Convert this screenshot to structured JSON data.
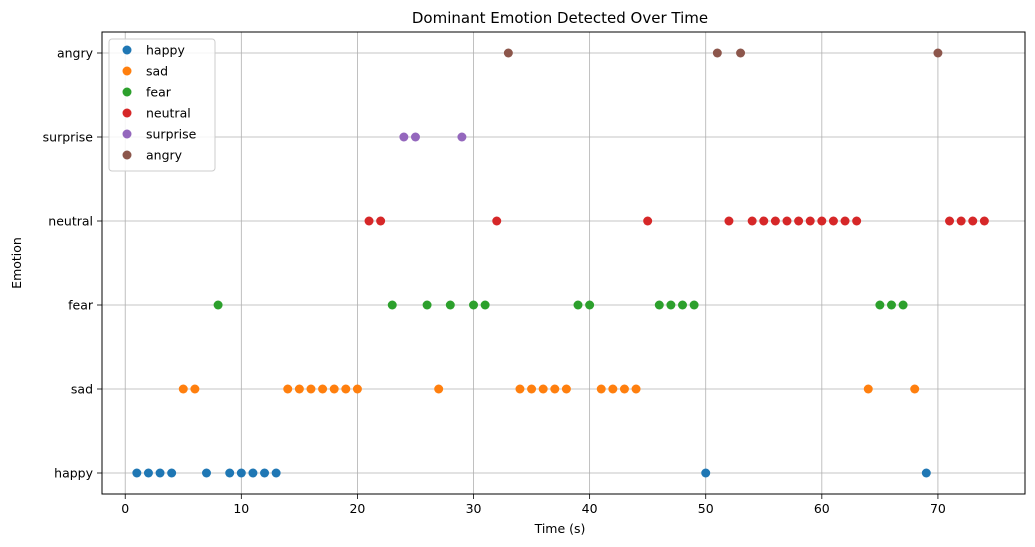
{
  "chart_data": {
    "type": "scatter",
    "title": "Dominant Emotion Detected Over Time",
    "xlabel": "Time (s)",
    "ylabel": "Emotion",
    "xlim": [
      -2,
      77.5
    ],
    "xticks": [
      0,
      10,
      20,
      30,
      40,
      50,
      60,
      70
    ],
    "categories": [
      "happy",
      "sad",
      "fear",
      "neutral",
      "surprise",
      "angry"
    ],
    "grid": true,
    "legend_position": "top-left",
    "series": [
      {
        "name": "happy",
        "color": "#1f77b4",
        "x": [
          1,
          2,
          3,
          4,
          7,
          9,
          10,
          11,
          12,
          13,
          50,
          69
        ]
      },
      {
        "name": "sad",
        "color": "#ff7f0e",
        "x": [
          5,
          6,
          14,
          15,
          16,
          17,
          18,
          19,
          20,
          27,
          34,
          35,
          36,
          37,
          38,
          41,
          42,
          43,
          44,
          64,
          68
        ]
      },
      {
        "name": "fear",
        "color": "#2ca02c",
        "x": [
          8,
          23,
          26,
          28,
          30,
          31,
          39,
          40,
          46,
          47,
          48,
          49,
          65,
          66,
          67
        ]
      },
      {
        "name": "neutral",
        "color": "#d62728",
        "x": [
          21,
          22,
          32,
          45,
          52,
          54,
          55,
          56,
          57,
          58,
          59,
          60,
          61,
          62,
          63,
          71,
          72,
          73,
          74
        ]
      },
      {
        "name": "surprise",
        "color": "#9467bd",
        "x": [
          24,
          25,
          29
        ]
      },
      {
        "name": "angry",
        "color": "#8c564b",
        "x": [
          33,
          51,
          53,
          70
        ]
      }
    ]
  }
}
